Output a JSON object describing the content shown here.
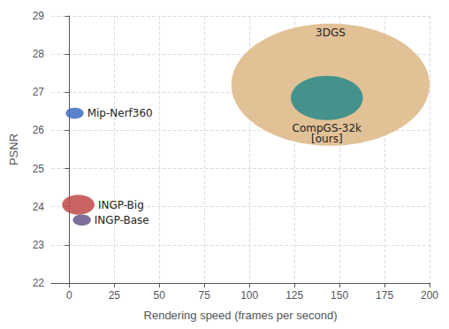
{
  "chart_data": {
    "type": "bubble",
    "labels": [
      "3DGS",
      "CompGS-32k\n[ours]",
      "Mip-Nerf360",
      "INGP-Big",
      "INGP-Base"
    ],
    "x": [
      145,
      143,
      3,
      5,
      7
    ],
    "y": [
      27.2,
      26.85,
      26.45,
      24.05,
      23.65
    ],
    "radius_x": [
      55,
      20,
      5,
      9,
      5
    ],
    "radius_y": [
      1.6,
      0.58,
      0.145,
      0.26,
      0.145
    ],
    "colors": [
      "#DEB887",
      "#2E8B8A",
      "#4472C4",
      "#C0504D",
      "#6B5B8B"
    ],
    "xlabel": "Rendering speed (frames per second)",
    "ylabel": "PSNR",
    "xlim": [
      -10,
      200
    ],
    "ylim": [
      22,
      29
    ],
    "xticks": [
      0,
      25,
      50,
      75,
      100,
      125,
      150,
      175,
      200
    ],
    "yticks": [
      22,
      23,
      24,
      25,
      26,
      27,
      28,
      29
    ],
    "grid": true
  }
}
